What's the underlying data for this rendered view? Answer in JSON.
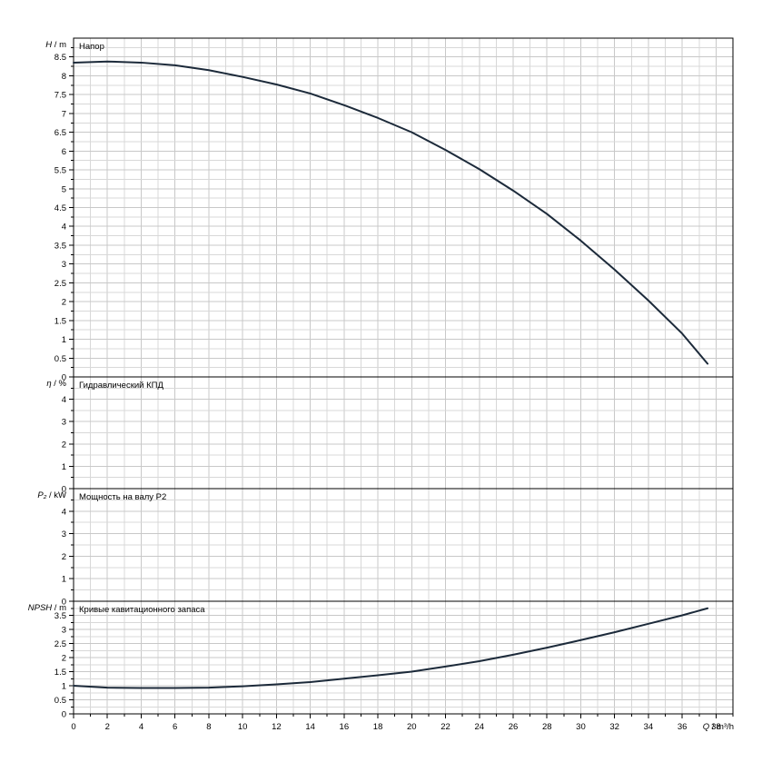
{
  "chart_data": {
    "type": "line",
    "grid": true,
    "x_axis": {
      "label_symbol": "Q",
      "label_unit": "/ m³/h",
      "range": [
        0,
        39
      ],
      "ticks": [
        0,
        2,
        4,
        6,
        8,
        10,
        12,
        14,
        16,
        18,
        20,
        22,
        24,
        26,
        28,
        30,
        32,
        34,
        36,
        38
      ],
      "tick_labels": [
        "0",
        "2",
        "4",
        "6",
        "8",
        "10",
        "12",
        "14",
        "16",
        "18",
        "20",
        "22",
        "24",
        "26",
        "28",
        "30",
        "32",
        "34",
        "36",
        "38"
      ]
    },
    "panels": [
      {
        "id": "head",
        "title": "Напор",
        "ylabel_symbol": "H",
        "ylabel_unit": "/ m",
        "ylim": [
          0,
          9
        ],
        "yticks": [
          0,
          0.5,
          1,
          1.5,
          2,
          2.5,
          3,
          3.5,
          4,
          4.5,
          5,
          5.5,
          6,
          6.5,
          7,
          7.5,
          8,
          8.5
        ],
        "ytick_labels": [
          "0",
          "0.5",
          "1",
          "1.5",
          "2",
          "2.5",
          "3",
          "3.5",
          "4",
          "4.5",
          "5",
          "5.5",
          "6",
          "6.5",
          "7",
          "7.5",
          "8",
          "8.5"
        ],
        "series": [
          {
            "x": [
              0,
              2,
              4,
              6,
              8,
              10,
              12,
              14,
              16,
              18,
              20,
              22,
              24,
              26,
              28,
              30,
              32,
              34,
              36,
              37.5
            ],
            "y": [
              8.35,
              8.38,
              8.35,
              8.28,
              8.15,
              7.97,
              7.77,
              7.53,
              7.22,
              6.88,
              6.5,
              6.03,
              5.52,
              4.95,
              4.33,
              3.62,
              2.85,
              2.03,
              1.15,
              0.35
            ]
          }
        ]
      },
      {
        "id": "efficiency",
        "title": "Гидравлический КПД",
        "ylabel_symbol": "η",
        "ylabel_unit": "/ %",
        "ylim": [
          0,
          5
        ],
        "yticks": [
          0,
          1,
          2,
          3,
          4
        ],
        "ytick_labels": [
          "0",
          "1",
          "2",
          "3",
          "4"
        ],
        "series": []
      },
      {
        "id": "power",
        "title": "Мощность на валу P2",
        "ylabel_symbol": "P₂",
        "ylabel_unit": "/ kW",
        "ylim": [
          0,
          5
        ],
        "yticks": [
          0,
          1,
          2,
          3,
          4
        ],
        "ytick_labels": [
          "0",
          "1",
          "2",
          "3",
          "4"
        ],
        "series": []
      },
      {
        "id": "npsh",
        "title": "Кривые кавитационного запаса",
        "ylabel_symbol": "NPSH",
        "ylabel_unit": "/ m",
        "ylim": [
          0,
          4
        ],
        "yticks": [
          0,
          0.5,
          1,
          1.5,
          2,
          2.5,
          3,
          3.5
        ],
        "ytick_labels": [
          "0",
          "0.5",
          "1",
          "1.5",
          "2",
          "2.5",
          "3",
          "3.5"
        ],
        "series": [
          {
            "x": [
              0,
              2,
              4,
              6,
              8,
              10,
              12,
              14,
              16,
              18,
              20,
              22,
              24,
              26,
              28,
              30,
              32,
              34,
              36,
              37.5
            ],
            "y": [
              1.0,
              0.93,
              0.92,
              0.92,
              0.93,
              0.98,
              1.05,
              1.13,
              1.25,
              1.37,
              1.5,
              1.68,
              1.87,
              2.1,
              2.35,
              2.62,
              2.9,
              3.2,
              3.5,
              3.75
            ]
          }
        ]
      }
    ]
  }
}
